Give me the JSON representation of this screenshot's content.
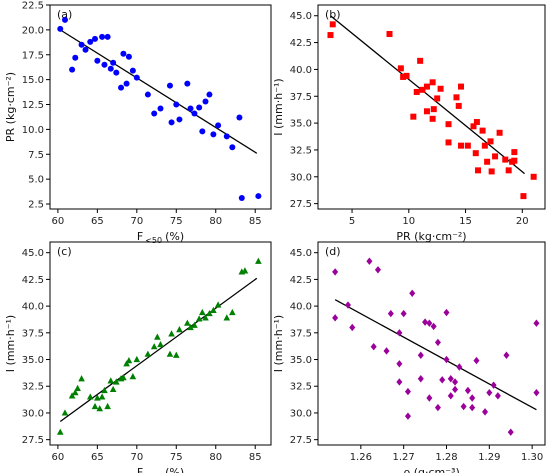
{
  "chart_data": [
    {
      "panel_label": "(a)",
      "type": "scatter",
      "marker": "circle",
      "color": "#0000ff",
      "xlabel": "F <50 (%)",
      "xlabel_main": "F",
      "xlabel_sub": "<50",
      "xlabel_unit": "(%)",
      "ylabel": "PR (kg·cm⁻²)",
      "xlim": [
        59,
        87
      ],
      "ylim": [
        2.0,
        22.5
      ],
      "xticks": [
        60,
        65,
        70,
        75,
        80,
        85
      ],
      "yticks": [
        2.5,
        5.0,
        7.5,
        10.0,
        12.5,
        15.0,
        17.5,
        20.0,
        22.5
      ],
      "tick_decimals": [
        0,
        1
      ],
      "fit_line": [
        [
          60.3,
          20.0
        ],
        [
          85.2,
          7.6
        ]
      ],
      "x": [
        60.3,
        60.9,
        61.8,
        62.2,
        63.0,
        63.5,
        64.1,
        64.7,
        65.0,
        65.6,
        65.9,
        66.3,
        66.7,
        67.0,
        67.4,
        68.0,
        68.3,
        68.7,
        69.0,
        69.5,
        70.0,
        71.4,
        72.2,
        73.0,
        74.2,
        74.4,
        75.0,
        75.4,
        76.4,
        76.8,
        77.3,
        77.9,
        78.3,
        78.7,
        79.2,
        79.7,
        80.3,
        81.4,
        82.1,
        83.0,
        83.3,
        85.4
      ],
      "y": [
        20.1,
        21.0,
        16.0,
        17.2,
        18.5,
        18.0,
        18.8,
        19.1,
        16.9,
        19.3,
        16.5,
        19.3,
        16.1,
        16.7,
        15.7,
        14.2,
        17.6,
        14.6,
        17.3,
        15.9,
        15.2,
        13.5,
        11.6,
        12.1,
        14.4,
        10.7,
        12.5,
        11.0,
        14.6,
        12.1,
        11.6,
        12.2,
        9.8,
        12.8,
        13.5,
        9.5,
        10.4,
        9.3,
        8.2,
        11.2,
        3.1,
        3.3
      ]
    },
    {
      "panel_label": "(b)",
      "type": "scatter",
      "marker": "square",
      "color": "#ff0000",
      "xlabel": "PR (kg·cm⁻²)",
      "ylabel": "I (mm·h⁻¹)",
      "xlim": [
        2.0,
        22.0
      ],
      "ylim": [
        27.0,
        46.0
      ],
      "xticks": [
        5,
        10,
        15,
        20
      ],
      "yticks": [
        27.5,
        30.0,
        32.5,
        35.0,
        37.5,
        40.0,
        42.5,
        45.0
      ],
      "tick_decimals": [
        0,
        1
      ],
      "fit_line": [
        [
          3.1,
          45.0
        ],
        [
          20.2,
          30.3
        ]
      ],
      "x": [
        3.1,
        3.3,
        8.3,
        9.3,
        9.5,
        9.8,
        10.4,
        10.7,
        11.0,
        11.2,
        11.6,
        11.6,
        12.1,
        12.1,
        12.2,
        12.5,
        12.8,
        13.5,
        13.5,
        14.2,
        14.4,
        14.6,
        14.6,
        15.2,
        15.7,
        15.9,
        16.0,
        16.1,
        16.5,
        16.7,
        16.9,
        17.2,
        17.3,
        17.6,
        18.0,
        18.5,
        18.8,
        19.1,
        19.3,
        19.3,
        20.1,
        21.0
      ],
      "y": [
        43.2,
        44.2,
        43.3,
        40.1,
        39.3,
        39.4,
        35.6,
        37.9,
        40.8,
        38.1,
        38.4,
        36.1,
        35.4,
        38.8,
        36.3,
        37.3,
        38.2,
        34.9,
        33.2,
        37.4,
        36.6,
        32.9,
        38.4,
        32.9,
        34.7,
        32.2,
        35.1,
        30.6,
        34.3,
        32.9,
        31.4,
        33.3,
        30.5,
        31.9,
        34.1,
        31.6,
        30.6,
        31.4,
        31.5,
        32.3,
        28.2,
        30.0
      ]
    },
    {
      "panel_label": "(c)",
      "type": "scatter",
      "marker": "triangle",
      "color": "#008000",
      "xlabel": "F <50 (%)",
      "xlabel_main": "F",
      "xlabel_sub": "<50",
      "xlabel_unit": "(%)",
      "ylabel": "I (mm·h⁻¹)",
      "xlim": [
        59,
        87
      ],
      "ylim": [
        27.0,
        46.0
      ],
      "xticks": [
        60,
        65,
        70,
        75,
        80,
        85
      ],
      "yticks": [
        27.5,
        30.0,
        32.5,
        35.0,
        37.5,
        40.0,
        42.5,
        45.0
      ],
      "tick_decimals": [
        0,
        1
      ],
      "fit_line": [
        [
          60.3,
          29.2
        ],
        [
          85.2,
          42.6
        ]
      ],
      "x": [
        60.3,
        60.9,
        61.8,
        62.2,
        62.5,
        63.0,
        64.1,
        64.7,
        65.0,
        65.3,
        65.6,
        65.9,
        66.3,
        66.7,
        67.0,
        67.4,
        68.0,
        68.3,
        68.7,
        69.0,
        69.5,
        70.0,
        71.4,
        72.2,
        72.6,
        73.0,
        74.2,
        74.4,
        75.0,
        75.4,
        76.4,
        76.8,
        77.3,
        77.9,
        78.3,
        78.7,
        79.2,
        79.7,
        80.3,
        81.4,
        82.1,
        83.3,
        83.7,
        85.4
      ],
      "y": [
        28.2,
        30.0,
        31.6,
        31.9,
        32.3,
        33.2,
        31.5,
        30.6,
        31.4,
        30.4,
        31.5,
        32.1,
        30.6,
        33.0,
        32.2,
        32.9,
        33.2,
        33.3,
        34.6,
        34.9,
        33.4,
        35.0,
        35.5,
        36.2,
        37.1,
        36.4,
        35.5,
        37.4,
        35.4,
        37.8,
        38.4,
        38.0,
        38.2,
        38.8,
        39.4,
        38.9,
        39.3,
        39.6,
        40.1,
        38.9,
        39.4,
        43.2,
        43.3,
        44.2
      ]
    },
    {
      "panel_label": "(d)",
      "type": "scatter",
      "marker": "diamond",
      "color": "#9b009b",
      "xlabel": "ρ (g·cm⁻³)",
      "ylabel": "I (mm·h⁻¹)",
      "xlim": [
        1.25,
        1.303
      ],
      "ylim": [
        27.0,
        46.0
      ],
      "xticks": [
        1.26,
        1.27,
        1.28,
        1.29,
        1.3
      ],
      "yticks": [
        27.5,
        30.0,
        32.5,
        35.0,
        37.5,
        40.0,
        42.5,
        45.0
      ],
      "tick_decimals": [
        2,
        1
      ],
      "fit_line": [
        [
          1.254,
          40.6
        ],
        [
          1.301,
          30.3
        ]
      ],
      "x": [
        1.254,
        1.254,
        1.257,
        1.258,
        1.262,
        1.263,
        1.264,
        1.266,
        1.267,
        1.269,
        1.269,
        1.269,
        1.27,
        1.271,
        1.271,
        1.272,
        1.274,
        1.274,
        1.275,
        1.276,
        1.276,
        1.277,
        1.278,
        1.278,
        1.279,
        1.28,
        1.28,
        1.281,
        1.281,
        1.282,
        1.282,
        1.283,
        1.284,
        1.285,
        1.286,
        1.286,
        1.287,
        1.289,
        1.29,
        1.291,
        1.292,
        1.294,
        1.295,
        1.301,
        1.301
      ],
      "y": [
        43.2,
        38.9,
        40.1,
        38.0,
        44.2,
        36.2,
        43.4,
        35.8,
        39.3,
        34.6,
        32.9,
        37.5,
        39.3,
        32.0,
        29.7,
        41.2,
        35.4,
        33.2,
        38.5,
        38.4,
        31.4,
        38.1,
        30.5,
        36.6,
        33.1,
        35.0,
        39.4,
        31.6,
        33.2,
        32.9,
        32.2,
        34.3,
        30.6,
        32.1,
        30.5,
        31.4,
        34.9,
        30.1,
        31.9,
        32.6,
        31.6,
        35.4,
        28.2,
        38.4,
        31.9
      ]
    }
  ]
}
